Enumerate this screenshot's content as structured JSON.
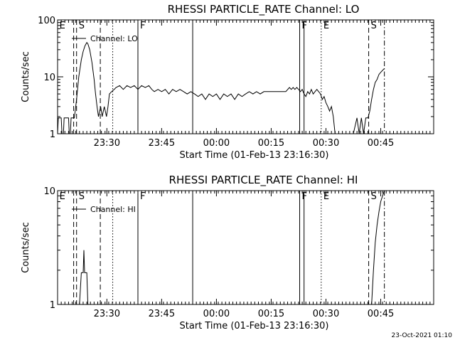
{
  "chart_data": [
    {
      "type": "line",
      "title": "RHESSI PARTICLE_RATE Channel: LO",
      "xlabel": "Start Time (01-Feb-13 23:16:30)",
      "ylabel": "Counts/sec",
      "yscale": "log",
      "ylim": [
        1,
        100
      ],
      "yticks": [
        "1",
        "10",
        "100"
      ],
      "xlim_minutes": [
        0,
        103
      ],
      "xticks": [
        {
          "label": "23:30",
          "t": 13.5
        },
        {
          "label": "23:45",
          "t": 28.5
        },
        {
          "label": "00:00",
          "t": 43.5
        },
        {
          "label": "00:15",
          "t": 58.5
        },
        {
          "label": "00:30",
          "t": 73.5
        },
        {
          "label": "00:45",
          "t": 88.5
        }
      ],
      "legend": "Channel: LO",
      "event_lines": [
        {
          "t": 4.4,
          "style": "dashed",
          "label": "E"
        },
        {
          "t": 5.2,
          "style": "dashed",
          "label": "S"
        },
        {
          "t": 11.7,
          "style": "dashed",
          "label": ""
        },
        {
          "t": 15.1,
          "style": "dotted",
          "label": ""
        },
        {
          "t": 22.0,
          "style": "solid",
          "label": "F"
        },
        {
          "t": 37.0,
          "style": "solid",
          "label": ""
        },
        {
          "t": 66.3,
          "style": "solid",
          "label": "F"
        },
        {
          "t": 67.5,
          "style": "solid",
          "label": ""
        },
        {
          "t": 72.2,
          "style": "dotted",
          "label": "E"
        },
        {
          "t": 85.2,
          "style": "dashed",
          "label": "S"
        },
        {
          "t": 89.5,
          "style": "dashdot",
          "label": ""
        }
      ],
      "series": [
        {
          "points": [
            [
              0.0,
              1.0
            ],
            [
              0.2,
              1.9
            ],
            [
              1.0,
              1.9
            ],
            [
              1.2,
              1.0
            ],
            [
              1.6,
              1.0
            ],
            [
              1.8,
              1.9
            ],
            [
              3.0,
              1.9
            ],
            [
              3.2,
              1.0
            ],
            [
              3.5,
              1.0
            ],
            [
              3.7,
              1.9
            ],
            [
              4.6,
              1.9
            ],
            [
              5.2,
              4.0
            ],
            [
              5.8,
              10.0
            ],
            [
              6.5,
              20.0
            ],
            [
              7.0,
              28.0
            ],
            [
              7.5,
              35.0
            ],
            [
              8.0,
              40.0
            ],
            [
              8.3,
              38.0
            ],
            [
              8.8,
              30.0
            ],
            [
              9.4,
              18.0
            ],
            [
              10.0,
              9.0
            ],
            [
              10.4,
              5.0
            ],
            [
              10.8,
              3.0
            ],
            [
              11.2,
              2.0
            ],
            [
              11.8,
              3.0
            ],
            [
              12.2,
              2.0
            ],
            [
              12.8,
              3.0
            ],
            [
              13.4,
              2.0
            ],
            [
              13.8,
              3.0
            ],
            [
              14.2,
              5.0
            ],
            [
              14.8,
              5.5
            ],
            [
              15.5,
              6.0
            ],
            [
              16.0,
              6.5
            ],
            [
              17.0,
              7.0
            ],
            [
              18.0,
              6.0
            ],
            [
              19.0,
              7.0
            ],
            [
              20.0,
              6.5
            ],
            [
              21.0,
              7.0
            ],
            [
              22.0,
              6.0
            ],
            [
              23.0,
              7.0
            ],
            [
              24.0,
              6.5
            ],
            [
              25.0,
              7.0
            ],
            [
              25.8,
              6.0
            ],
            [
              26.5,
              5.5
            ],
            [
              27.5,
              6.0
            ],
            [
              28.5,
              5.5
            ],
            [
              29.5,
              6.0
            ],
            [
              30.5,
              5.0
            ],
            [
              31.5,
              6.0
            ],
            [
              32.5,
              5.5
            ],
            [
              33.5,
              6.0
            ],
            [
              34.5,
              5.5
            ],
            [
              35.5,
              5.0
            ],
            [
              36.5,
              5.5
            ],
            [
              37.5,
              5.0
            ],
            [
              38.5,
              4.5
            ],
            [
              39.5,
              5.0
            ],
            [
              40.5,
              4.0
            ],
            [
              41.5,
              5.0
            ],
            [
              42.5,
              4.5
            ],
            [
              43.5,
              5.0
            ],
            [
              44.5,
              4.0
            ],
            [
              45.5,
              5.0
            ],
            [
              46.5,
              4.5
            ],
            [
              47.5,
              5.0
            ],
            [
              48.5,
              4.0
            ],
            [
              49.5,
              5.0
            ],
            [
              50.5,
              4.5
            ],
            [
              51.5,
              5.0
            ],
            [
              52.5,
              5.5
            ],
            [
              53.5,
              5.0
            ],
            [
              54.5,
              5.5
            ],
            [
              55.5,
              5.0
            ],
            [
              56.5,
              5.5
            ],
            [
              57.5,
              5.5
            ],
            [
              58.5,
              5.5
            ],
            [
              59.5,
              5.5
            ],
            [
              60.5,
              5.5
            ],
            [
              61.5,
              5.5
            ],
            [
              62.5,
              5.5
            ],
            [
              63.5,
              6.5
            ],
            [
              64.0,
              6.0
            ],
            [
              64.5,
              6.5
            ],
            [
              65.0,
              6.0
            ],
            [
              65.5,
              6.5
            ],
            [
              66.0,
              6.0
            ],
            [
              66.5,
              5.5
            ],
            [
              67.0,
              6.0
            ],
            [
              67.5,
              5.0
            ],
            [
              68.0,
              4.5
            ],
            [
              68.5,
              5.5
            ],
            [
              69.0,
              5.0
            ],
            [
              69.5,
              6.0
            ],
            [
              70.0,
              5.0
            ],
            [
              70.5,
              5.5
            ],
            [
              71.0,
              6.0
            ],
            [
              71.5,
              5.5
            ],
            [
              72.0,
              5.0
            ],
            [
              72.5,
              4.0
            ],
            [
              73.0,
              4.5
            ],
            [
              73.5,
              3.5
            ],
            [
              74.0,
              3.0
            ],
            [
              74.5,
              2.5
            ],
            [
              75.0,
              3.0
            ],
            [
              75.5,
              2.0
            ],
            [
              76.0,
              1.0
            ],
            [
              77.0,
              1.0
            ],
            [
              78.0,
              1.0
            ],
            [
              79.0,
              1.0
            ],
            [
              80.0,
              1.0
            ],
            [
              81.0,
              1.0
            ],
            [
              82.0,
              1.9
            ],
            [
              82.6,
              1.0
            ],
            [
              83.2,
              1.9
            ],
            [
              83.8,
              1.0
            ],
            [
              84.4,
              1.9
            ],
            [
              85.0,
              1.9
            ],
            [
              85.5,
              2.5
            ],
            [
              86.0,
              4.0
            ],
            [
              86.5,
              6.0
            ],
            [
              87.0,
              8.0
            ],
            [
              87.5,
              9.0
            ],
            [
              88.0,
              11.0
            ],
            [
              88.5,
              12.0
            ],
            [
              89.0,
              13.0
            ],
            [
              89.5,
              14.0
            ]
          ]
        }
      ]
    },
    {
      "type": "line",
      "title": "RHESSI PARTICLE_RATE Channel: HI",
      "xlabel": "Start Time (01-Feb-13 23:16:30)",
      "ylabel": "Counts/sec",
      "yscale": "log",
      "ylim": [
        1,
        10
      ],
      "yticks": [
        "1",
        "10"
      ],
      "xlim_minutes": [
        0,
        103
      ],
      "xticks": [
        {
          "label": "23:30",
          "t": 13.5
        },
        {
          "label": "23:45",
          "t": 28.5
        },
        {
          "label": "00:00",
          "t": 43.5
        },
        {
          "label": "00:15",
          "t": 58.5
        },
        {
          "label": "00:30",
          "t": 73.5
        },
        {
          "label": "00:45",
          "t": 88.5
        }
      ],
      "legend": "Channel: HI",
      "event_lines": [
        {
          "t": 4.4,
          "style": "dashed",
          "label": "E"
        },
        {
          "t": 5.2,
          "style": "dashed",
          "label": "S"
        },
        {
          "t": 11.7,
          "style": "dashed",
          "label": ""
        },
        {
          "t": 15.1,
          "style": "dotted",
          "label": ""
        },
        {
          "t": 22.0,
          "style": "solid",
          "label": "F"
        },
        {
          "t": 37.0,
          "style": "solid",
          "label": ""
        },
        {
          "t": 66.3,
          "style": "solid",
          "label": "F"
        },
        {
          "t": 67.5,
          "style": "solid",
          "label": ""
        },
        {
          "t": 72.2,
          "style": "dotted",
          "label": "E"
        },
        {
          "t": 85.2,
          "style": "dashed",
          "label": "S"
        },
        {
          "t": 89.5,
          "style": "dashdot",
          "label": ""
        }
      ],
      "series": [
        {
          "points": [
            [
              6.0,
              1.0
            ],
            [
              6.5,
              1.9
            ],
            [
              7.0,
              1.9
            ],
            [
              7.2,
              3.0
            ],
            [
              7.4,
              1.9
            ],
            [
              8.0,
              1.9
            ],
            [
              8.3,
              1.0
            ],
            [
              84.0,
              1.0
            ],
            [
              86.0,
              1.0
            ],
            [
              86.5,
              2.0
            ],
            [
              87.0,
              3.5
            ],
            [
              87.5,
              5.0
            ],
            [
              88.0,
              6.5
            ],
            [
              88.5,
              8.0
            ],
            [
              89.0,
              9.0
            ],
            [
              89.5,
              10.0
            ]
          ]
        }
      ]
    }
  ],
  "footer": {
    "timestamp": "23-Oct-2021 01:10"
  }
}
